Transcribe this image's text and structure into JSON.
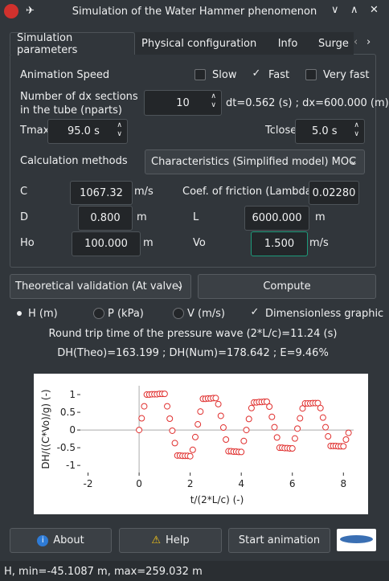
{
  "window": {
    "title": "Simulation of the Water Hammer phenomenon"
  },
  "tabs": [
    "Simulation parameters",
    "Physical configuration",
    "Info",
    "Surge"
  ],
  "speed": {
    "label": "Animation Speed",
    "options": [
      {
        "label": "Slow",
        "checked": false
      },
      {
        "label": "Fast",
        "checked": true
      },
      {
        "label": "Very fast",
        "checked": false
      }
    ]
  },
  "nparts": {
    "label": "Number of dx sections in the tube (nparts)",
    "value": "10",
    "info": "dt=0.562 (s) ; dx=600.000 (m)"
  },
  "tmax": {
    "label": "Tmax",
    "value": "95.0 s"
  },
  "tclose": {
    "label": "Tclose",
    "value": "5.0 s"
  },
  "method": {
    "label": "Calculation methods",
    "value": "Characteristics (Simplified model) MOC"
  },
  "fields": {
    "c": {
      "label": "C",
      "value": "1067.32",
      "unit": "m/s"
    },
    "friction": {
      "label": "Coef. of friction (Lambda)",
      "value": "0.02280"
    },
    "d": {
      "label": "D",
      "value": "0.800",
      "unit": "m"
    },
    "l": {
      "label": "L",
      "value": "6000.000",
      "unit": "m"
    },
    "ho": {
      "label": "Ho",
      "value": "100.000",
      "unit": "m"
    },
    "vo": {
      "label": "Vo",
      "value": "1.500",
      "unit": "m/s"
    }
  },
  "actions": {
    "validation": "Theoretical validation (At valve)",
    "compute": "Compute"
  },
  "display": {
    "options": [
      {
        "label": "H (m)",
        "checked": true
      },
      {
        "label": "P (kPa)",
        "checked": false
      },
      {
        "label": "V (m/s)",
        "checked": false
      }
    ],
    "dimensionless": {
      "label": "Dimensionless graphic",
      "checked": true
    }
  },
  "results": [
    "Round trip time of the pressure wave (2*L/c)=11.24 (s)",
    "DH(Theo)=163.199 ; DH(Num)=178.642 ; E=9.46%"
  ],
  "chart_data": {
    "type": "scatter",
    "x_label": "t/(2*L/c) (-)",
    "y_label": "DH/((C*Vo)/g) (-)",
    "xlim": [
      -2.3,
      8.4
    ],
    "ylim": [
      -1.2,
      1.25
    ],
    "xticks": [
      -2,
      0,
      2,
      4,
      6,
      8
    ],
    "yticks": [
      -1,
      -0.5,
      0,
      0.5,
      1
    ],
    "x": [
      0,
      0.1,
      0.2,
      0.3,
      0.4,
      0.5,
      0.6,
      0.7,
      0.8,
      0.9,
      1.0,
      1.1,
      1.2,
      1.3,
      1.4,
      1.5,
      1.6,
      1.7,
      1.8,
      1.9,
      2.0,
      2.1,
      2.2,
      2.3,
      2.4,
      2.5,
      2.6,
      2.7,
      2.8,
      2.9,
      3.0,
      3.1,
      3.2,
      3.3,
      3.4,
      3.5,
      3.6,
      3.7,
      3.8,
      3.9,
      4.0,
      4.1,
      4.2,
      4.3,
      4.4,
      4.5,
      4.6,
      4.7,
      4.8,
      4.9,
      5.0,
      5.1,
      5.2,
      5.3,
      5.4,
      5.5,
      5.6,
      5.7,
      5.8,
      5.9,
      6.0,
      6.1,
      6.2,
      6.3,
      6.4,
      6.5,
      6.6,
      6.7,
      6.8,
      6.9,
      7.0,
      7.1,
      7.2,
      7.3,
      7.4,
      7.5,
      7.6,
      7.7,
      7.8,
      7.9,
      8.0,
      8.1,
      8.2
    ],
    "series": [
      {
        "color": "#e0302f",
        "values": [
          0,
          0.33,
          0.67,
          1.0,
          1.0,
          1.01,
          1.01,
          1.01,
          1.02,
          1.02,
          1.02,
          0.67,
          0.32,
          -0.02,
          -0.37,
          -0.72,
          -0.72,
          -0.73,
          -0.73,
          -0.73,
          -0.74,
          -0.56,
          -0.2,
          0.16,
          0.52,
          0.88,
          0.88,
          0.89,
          0.89,
          0.9,
          0.9,
          0.73,
          0.4,
          0.07,
          -0.27,
          -0.6,
          -0.6,
          -0.61,
          -0.61,
          -0.62,
          -0.62,
          -0.31,
          0.0,
          0.31,
          0.62,
          0.78,
          0.78,
          0.79,
          0.79,
          0.8,
          0.8,
          0.66,
          0.37,
          0.08,
          -0.21,
          -0.5,
          -0.5,
          -0.51,
          -0.51,
          -0.52,
          -0.52,
          -0.24,
          0.04,
          0.33,
          0.61,
          0.75,
          0.75,
          0.75,
          0.76,
          0.76,
          0.76,
          0.62,
          0.35,
          0.08,
          -0.18,
          -0.45,
          -0.45,
          -0.45,
          -0.46,
          -0.46,
          -0.46,
          -0.27,
          -0.08
        ]
      }
    ]
  },
  "buttons": {
    "about": "About",
    "help": "Help",
    "start": "Start animation"
  },
  "status": "H, min=-45.1087 m, max=259.032 m"
}
